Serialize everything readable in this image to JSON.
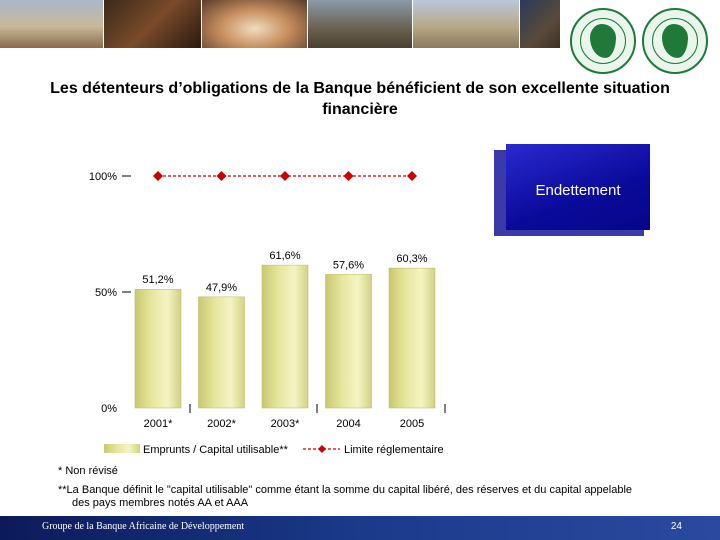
{
  "slide": {
    "title": "Les détenteurs d’obligations de la Banque bénéficient de son excellente situation financière",
    "box_label": "Endettement",
    "note1": "* Non révisé",
    "note2": "**La Banque définit le \"capital utilisable\" comme étant la somme du capital libéré, des réserves et du capital appelable des pays membres notés AA et AAA",
    "footer_text": "Groupe de la Banque Africaine de Développement",
    "page_number": "24"
  },
  "colors": {
    "bar_fill": "#e6e69c",
    "limit_line": "#cc0000",
    "box_blue": "#0a0a9a",
    "footer_blue": "#1a3a8a"
  },
  "banner_photos": [
    "building-photo",
    "children-photo",
    "shell-photo",
    "machinery-photo",
    "town-photo",
    "child-photo"
  ],
  "chart_data": {
    "type": "bar",
    "categories": [
      "2001*",
      "2002*",
      "2003*",
      "2004",
      "2005"
    ],
    "series": [
      {
        "name": "Emprunts / Capital utilisable**",
        "type": "bar",
        "values": [
          51.2,
          47.9,
          61.6,
          57.6,
          60.3
        ]
      },
      {
        "name": "Limite réglementaire",
        "type": "line",
        "values": [
          100,
          100,
          100,
          100,
          100
        ]
      }
    ],
    "data_labels": [
      "51,2%",
      "47,9%",
      "61,6%",
      "57,6%",
      "60,3%"
    ],
    "y_ticks": [
      {
        "value": 0,
        "label": "0%"
      },
      {
        "value": 50,
        "label": "50%"
      },
      {
        "value": 100,
        "label": "100%"
      }
    ],
    "ylim": [
      0,
      100
    ],
    "legend_position": "bottom",
    "title": "",
    "xlabel": "",
    "ylabel": ""
  }
}
